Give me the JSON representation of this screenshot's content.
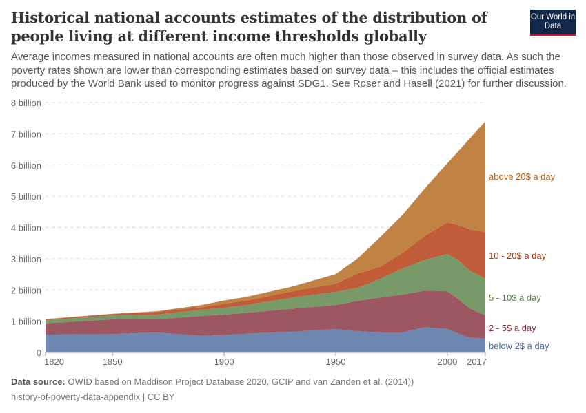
{
  "title": "Historical national accounts estimates of the distribution of people living at different income thresholds globally",
  "subtitle": "Average incomes measured in national accounts are often much higher than those observed in survey data. As such the poverty rates shown are lower than corresponding estimates based on survey data – this includes the official estimates produced by the World Bank used to monitor progress against SDG1. See Roser and Hasell (2021) for further discussion.",
  "logo": "Our World in Data",
  "footer": {
    "source_label": "Data source:",
    "source": "OWID based on Maddison Project Database 2020, GCIP and van Zanden et al. (2014))",
    "slug": "history-of-poverty-data-appendix | CC BY"
  },
  "chart_data": {
    "type": "area",
    "stacked": true,
    "grid": true,
    "ylim": [
      0,
      8000000000
    ],
    "yticks": [
      {
        "v": 0,
        "label": "0"
      },
      {
        "v": 1000000000,
        "label": "1 billion"
      },
      {
        "v": 2000000000,
        "label": "2 billion"
      },
      {
        "v": 3000000000,
        "label": "3 billion"
      },
      {
        "v": 4000000000,
        "label": "4 billion"
      },
      {
        "v": 5000000000,
        "label": "5 billion"
      },
      {
        "v": 6000000000,
        "label": "6 billion"
      },
      {
        "v": 7000000000,
        "label": "7 billion"
      },
      {
        "v": 8000000000,
        "label": "8 billion"
      }
    ],
    "xticks": [
      "1820",
      "1850",
      "1900",
      "1950",
      "2000",
      "2017"
    ],
    "xlim": [
      1820,
      2017
    ],
    "x": [
      1820,
      1850,
      1870,
      1890,
      1900,
      1910,
      1930,
      1950,
      1960,
      1970,
      1980,
      1990,
      2000,
      2005,
      2010,
      2017
    ],
    "legend_placement": "right (inline labels)",
    "series": [
      {
        "name": "below 2$ a day",
        "color": "#6d87b0",
        "label_color": "#4c6a9c",
        "values": [
          0.57,
          0.59,
          0.64,
          0.53,
          0.56,
          0.6,
          0.66,
          0.75,
          0.68,
          0.64,
          0.64,
          0.81,
          0.75,
          0.6,
          0.48,
          0.44
        ]
      },
      {
        "name": "2 - 5$ a day",
        "color": "#9c5762",
        "label_color": "#883039",
        "values": [
          0.36,
          0.47,
          0.42,
          0.64,
          0.65,
          0.67,
          0.74,
          0.77,
          0.97,
          1.12,
          1.21,
          1.17,
          1.21,
          1.1,
          0.93,
          0.75
        ]
      },
      {
        "name": "5 - 10$ a day",
        "color": "#789a68",
        "label_color": "#578145",
        "values": [
          0.1,
          0.13,
          0.15,
          0.2,
          0.22,
          0.25,
          0.35,
          0.42,
          0.42,
          0.6,
          0.84,
          0.99,
          1.19,
          1.25,
          1.21,
          1.17
        ]
      },
      {
        "name": "10 - 20$ a day",
        "color": "#c05d38",
        "label_color": "#b13507",
        "values": [
          0.03,
          0.04,
          0.09,
          0.08,
          0.13,
          0.14,
          0.2,
          0.26,
          0.46,
          0.39,
          0.5,
          0.77,
          1.01,
          1.13,
          1.32,
          1.49
        ]
      },
      {
        "name": "above 20$ a day",
        "color": "#c08343",
        "label_color": "#b16214",
        "values": [
          0.01,
          0.01,
          0.02,
          0.07,
          0.1,
          0.12,
          0.15,
          0.31,
          0.49,
          0.95,
          1.22,
          1.52,
          1.9,
          2.37,
          2.91,
          3.55
        ]
      }
    ],
    "value_unit": "billion"
  }
}
